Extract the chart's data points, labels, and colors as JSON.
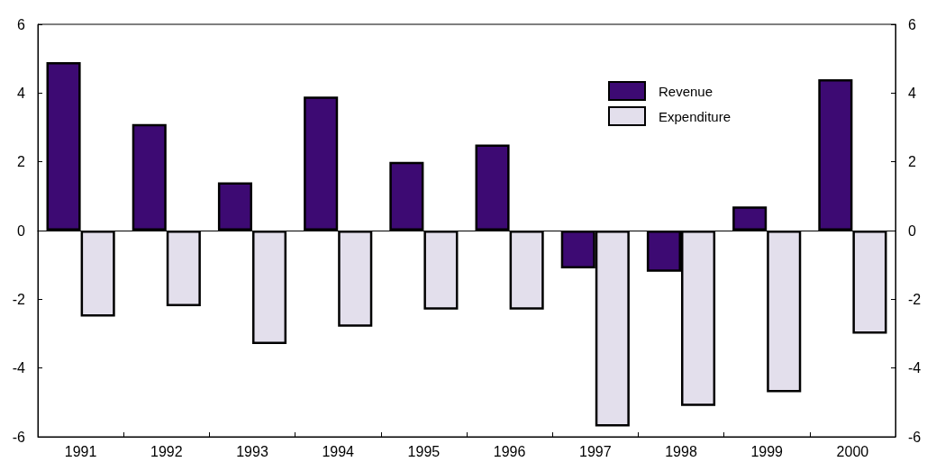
{
  "chart_data": {
    "type": "bar",
    "categories": [
      "1991",
      "1992",
      "1993",
      "1994",
      "1995",
      "1996",
      "1997",
      "1998",
      "1999",
      "2000"
    ],
    "series": [
      {
        "name": "Revenue",
        "color": "#3d0a73",
        "values": [
          4.9,
          3.1,
          1.4,
          3.9,
          2.0,
          2.5,
          -1.1,
          -1.2,
          0.7,
          4.4
        ]
      },
      {
        "name": "Expenditure",
        "color": "#e3dfec",
        "values": [
          -2.5,
          -2.2,
          -3.3,
          -2.8,
          -2.3,
          -2.3,
          -5.7,
          -5.1,
          -4.7,
          -3.0
        ]
      }
    ],
    "ylim": [
      -6,
      6
    ],
    "yticks": [
      -6,
      -4,
      -2,
      0,
      2,
      4,
      6
    ],
    "y2lim": [
      -6,
      6
    ],
    "y2ticks": [
      -6,
      -4,
      -2,
      0,
      2,
      4,
      6
    ],
    "legend": "top right"
  }
}
